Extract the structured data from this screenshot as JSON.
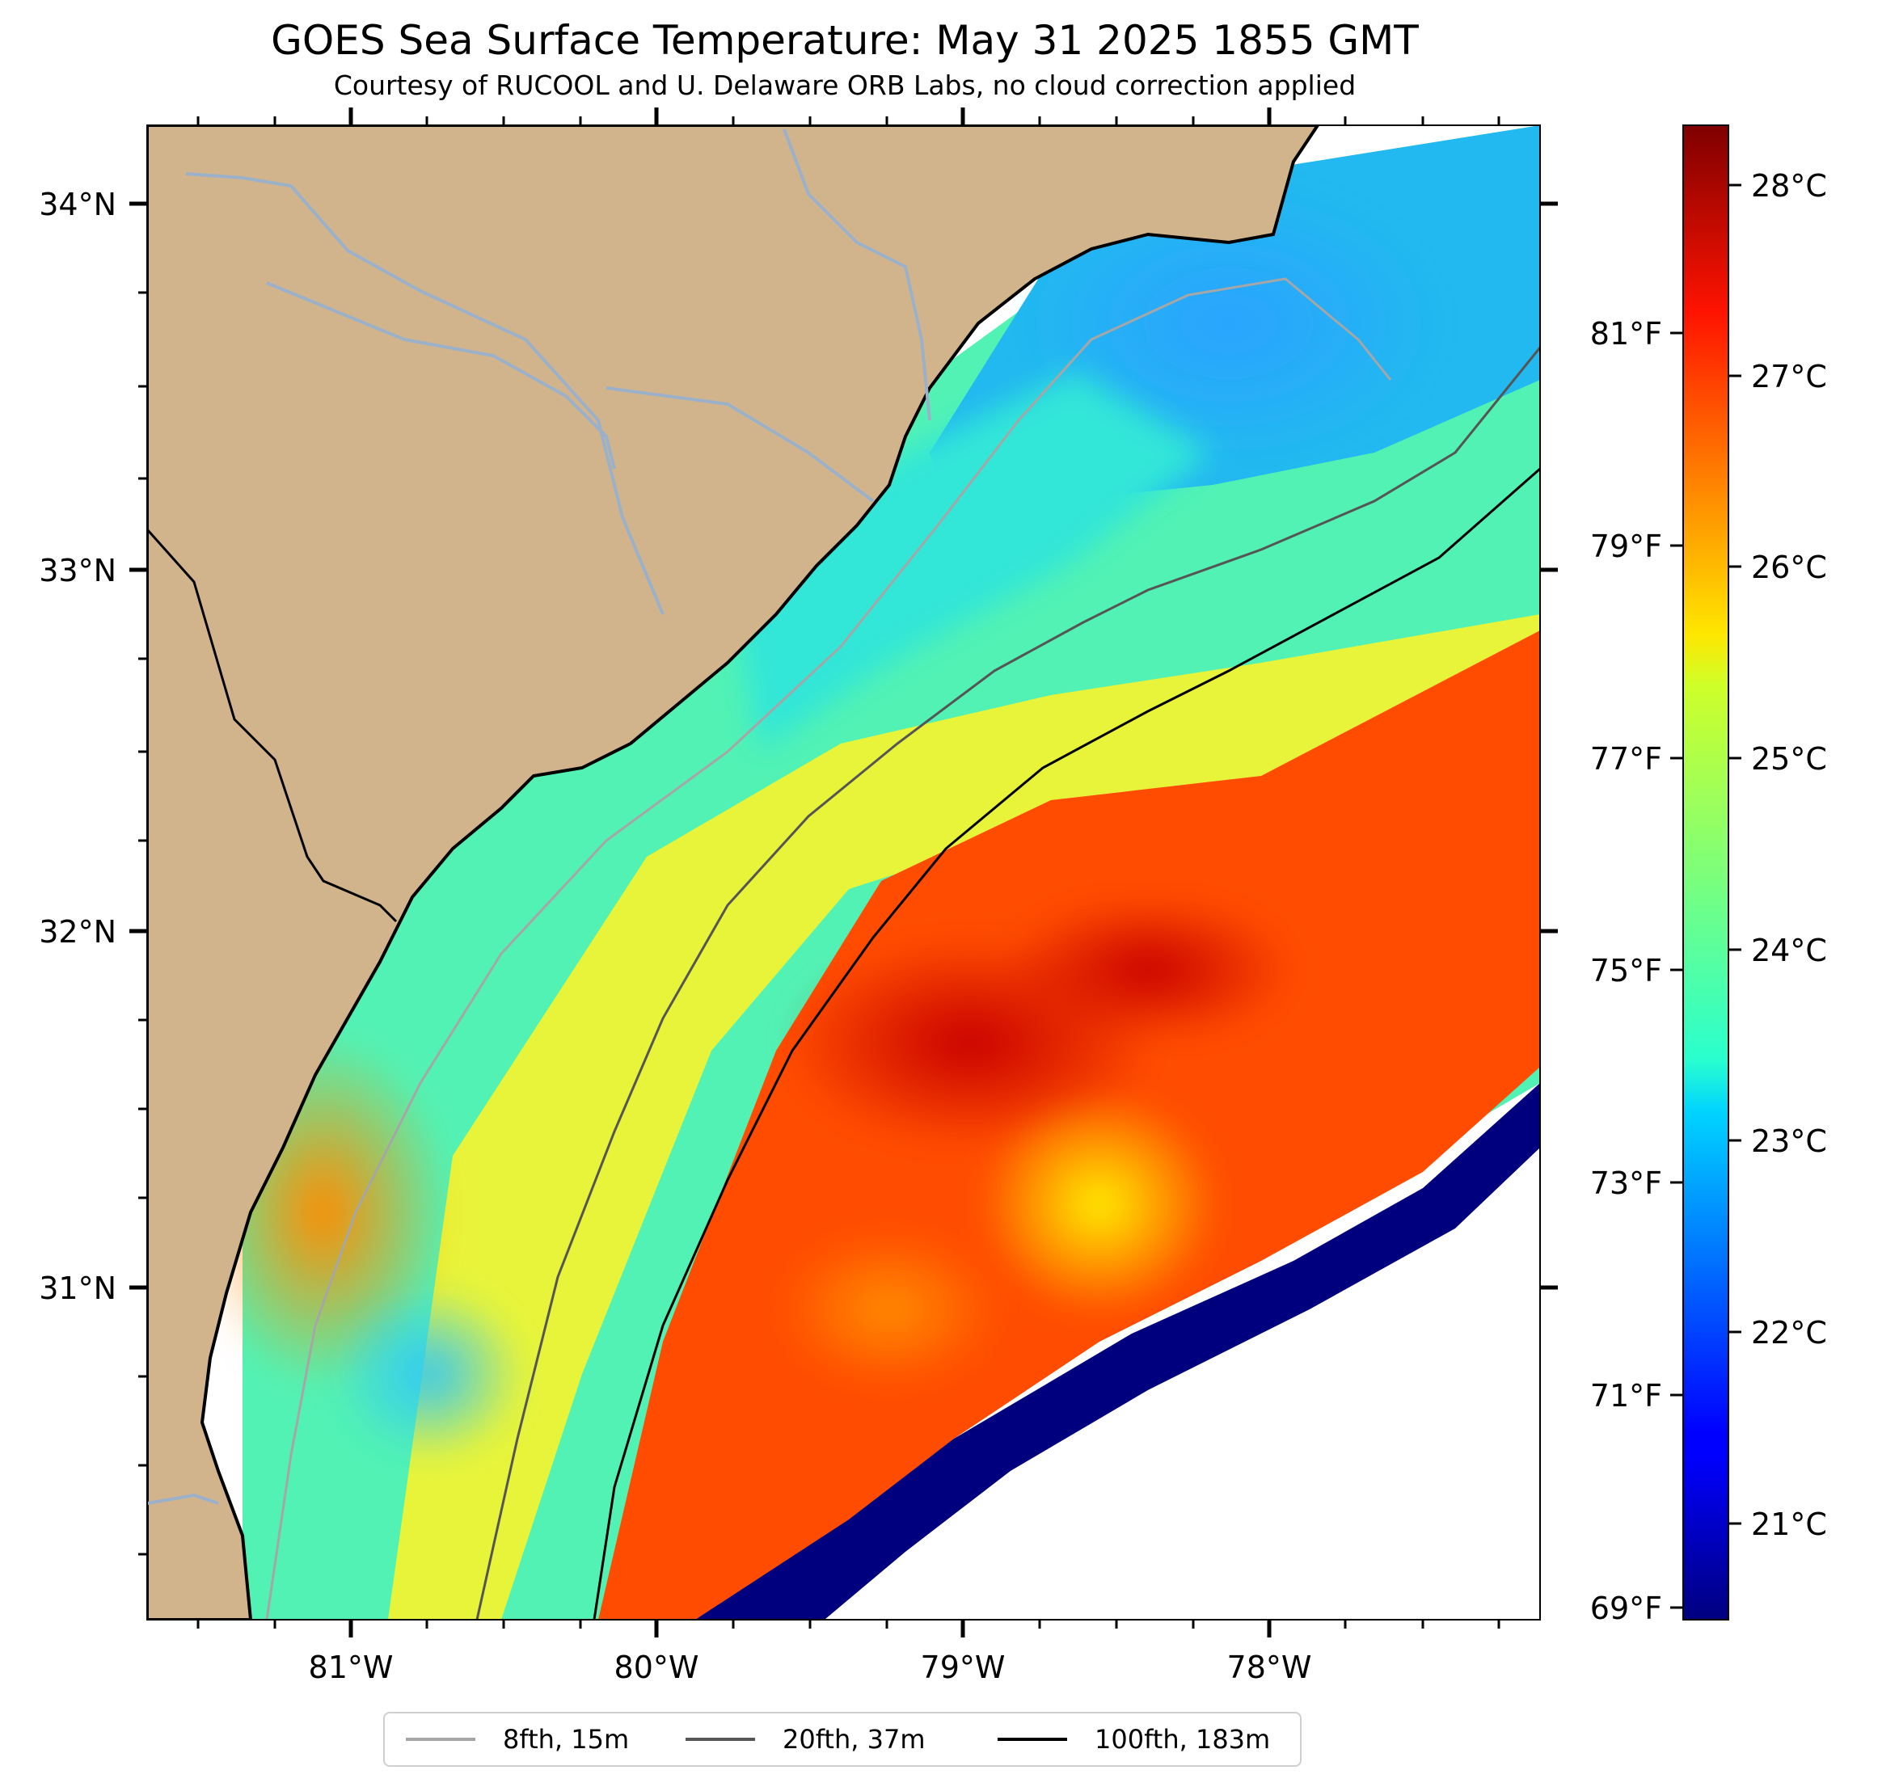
{
  "title": "GOES Sea Surface Temperature: May 31 2025 1855 GMT",
  "subtitle": "Courtesy of RUCOOL and U. Delaware ORB Labs, no cloud correction applied",
  "map": {
    "lat_range": [
      30.1,
      34.2
    ],
    "lon_range": [
      -81.65,
      -77.1
    ],
    "lat_ticks": [
      "34°N",
      "33°N",
      "32°N",
      "31°N"
    ],
    "lon_ticks": [
      "81°W",
      "80°W",
      "79°W",
      "78°W"
    ],
    "colors": {
      "land": "#d2b48c",
      "rivers": "#9bb1c9",
      "no_data": "#ffffff",
      "coastline": "#000000"
    }
  },
  "colorbar": {
    "colormap": "jet",
    "range_c": [
      20.5,
      28.3
    ],
    "celsius_labels": [
      "28°C",
      "27°C",
      "26°C",
      "25°C",
      "24°C",
      "23°C",
      "22°C",
      "21°C"
    ],
    "fahrenheit_labels": [
      "81°F",
      "79°F",
      "77°F",
      "75°F",
      "73°F",
      "71°F",
      "69°F"
    ]
  },
  "legend": [
    {
      "label": "8fth, 15m",
      "color": "#a6a6a6"
    },
    {
      "label": "20fth, 37m",
      "color": "#555555"
    },
    {
      "label": "100fth, 183m",
      "color": "#000000"
    }
  ]
}
